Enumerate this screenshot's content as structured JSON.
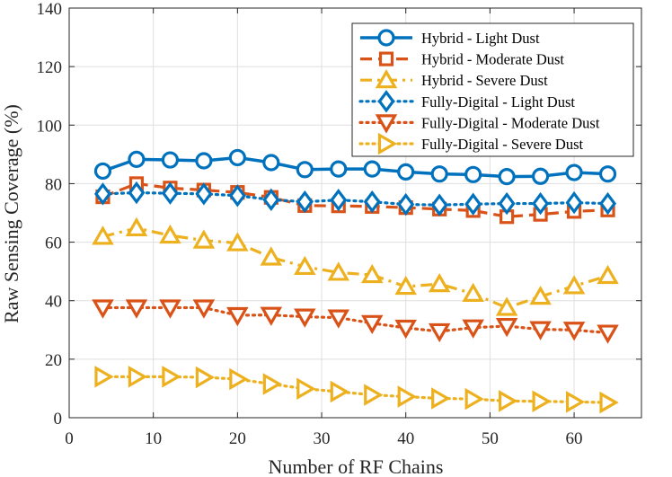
{
  "chart_data": {
    "type": "line",
    "title": "",
    "xlabel": "Number of RF Chains",
    "ylabel": "Raw Sensing Coverage (%)",
    "xlim": [
      0,
      68
    ],
    "ylim": [
      0,
      140
    ],
    "xticks": [
      0,
      10,
      20,
      30,
      40,
      50,
      60
    ],
    "yticks": [
      0,
      20,
      40,
      60,
      80,
      100,
      120,
      140
    ],
    "grid": true,
    "legend_position": "top-right",
    "x": [
      4,
      8,
      12,
      16,
      20,
      24,
      28,
      32,
      36,
      40,
      44,
      48,
      52,
      56,
      60,
      64
    ],
    "series": [
      {
        "name": "Hybrid - Light Dust",
        "color": "#0072BD",
        "line_style": "solid",
        "marker": "circle",
        "values": [
          84.3,
          88.3,
          88.1,
          87.8,
          88.9,
          87.2,
          84.8,
          85.0,
          85.0,
          84.0,
          83.3,
          83.1,
          82.4,
          82.5,
          83.8,
          83.3
        ]
      },
      {
        "name": "Hybrid - Moderate Dust",
        "color": "#D95319",
        "line_style": "dashed",
        "marker": "square",
        "values": [
          75.5,
          80.0,
          78.5,
          77.8,
          77.0,
          75.3,
          72.5,
          72.4,
          72.2,
          71.8,
          71.3,
          70.8,
          68.7,
          69.5,
          70.5,
          71.0
        ]
      },
      {
        "name": "Hybrid - Severe Dust",
        "color": "#EDB120",
        "line_style": "dashdot",
        "marker": "triangle-up",
        "values": [
          61.9,
          64.8,
          62.3,
          60.6,
          59.7,
          54.8,
          51.6,
          49.6,
          48.8,
          44.8,
          45.7,
          42.4,
          37.6,
          41.4,
          45.0,
          48.5
        ]
      },
      {
        "name": "Fully-Digital - Light Dust",
        "color": "#0072BD",
        "line_style": "dotted",
        "marker": "diamond",
        "values": [
          76.5,
          76.9,
          76.7,
          76.5,
          75.9,
          74.5,
          73.8,
          74.4,
          73.8,
          72.9,
          72.7,
          73.0,
          73.2,
          73.2,
          73.5,
          73.2
        ]
      },
      {
        "name": "Fully-Digital - Moderate Dust",
        "color": "#D95319",
        "line_style": "dotted",
        "marker": "triangle-down",
        "values": [
          37.6,
          37.6,
          37.6,
          37.6,
          35.0,
          35.1,
          34.5,
          34.2,
          32.3,
          30.7,
          29.5,
          30.8,
          31.3,
          30.2,
          30.0,
          29.0
        ]
      },
      {
        "name": "Fully-Digital - Severe Dust",
        "color": "#EDB120",
        "line_style": "dotted",
        "marker": "triangle-right",
        "values": [
          14.0,
          14.0,
          14.0,
          13.8,
          13.2,
          11.5,
          9.9,
          8.9,
          7.8,
          7.2,
          6.6,
          6.4,
          5.7,
          5.6,
          5.4,
          5.2
        ]
      }
    ]
  }
}
